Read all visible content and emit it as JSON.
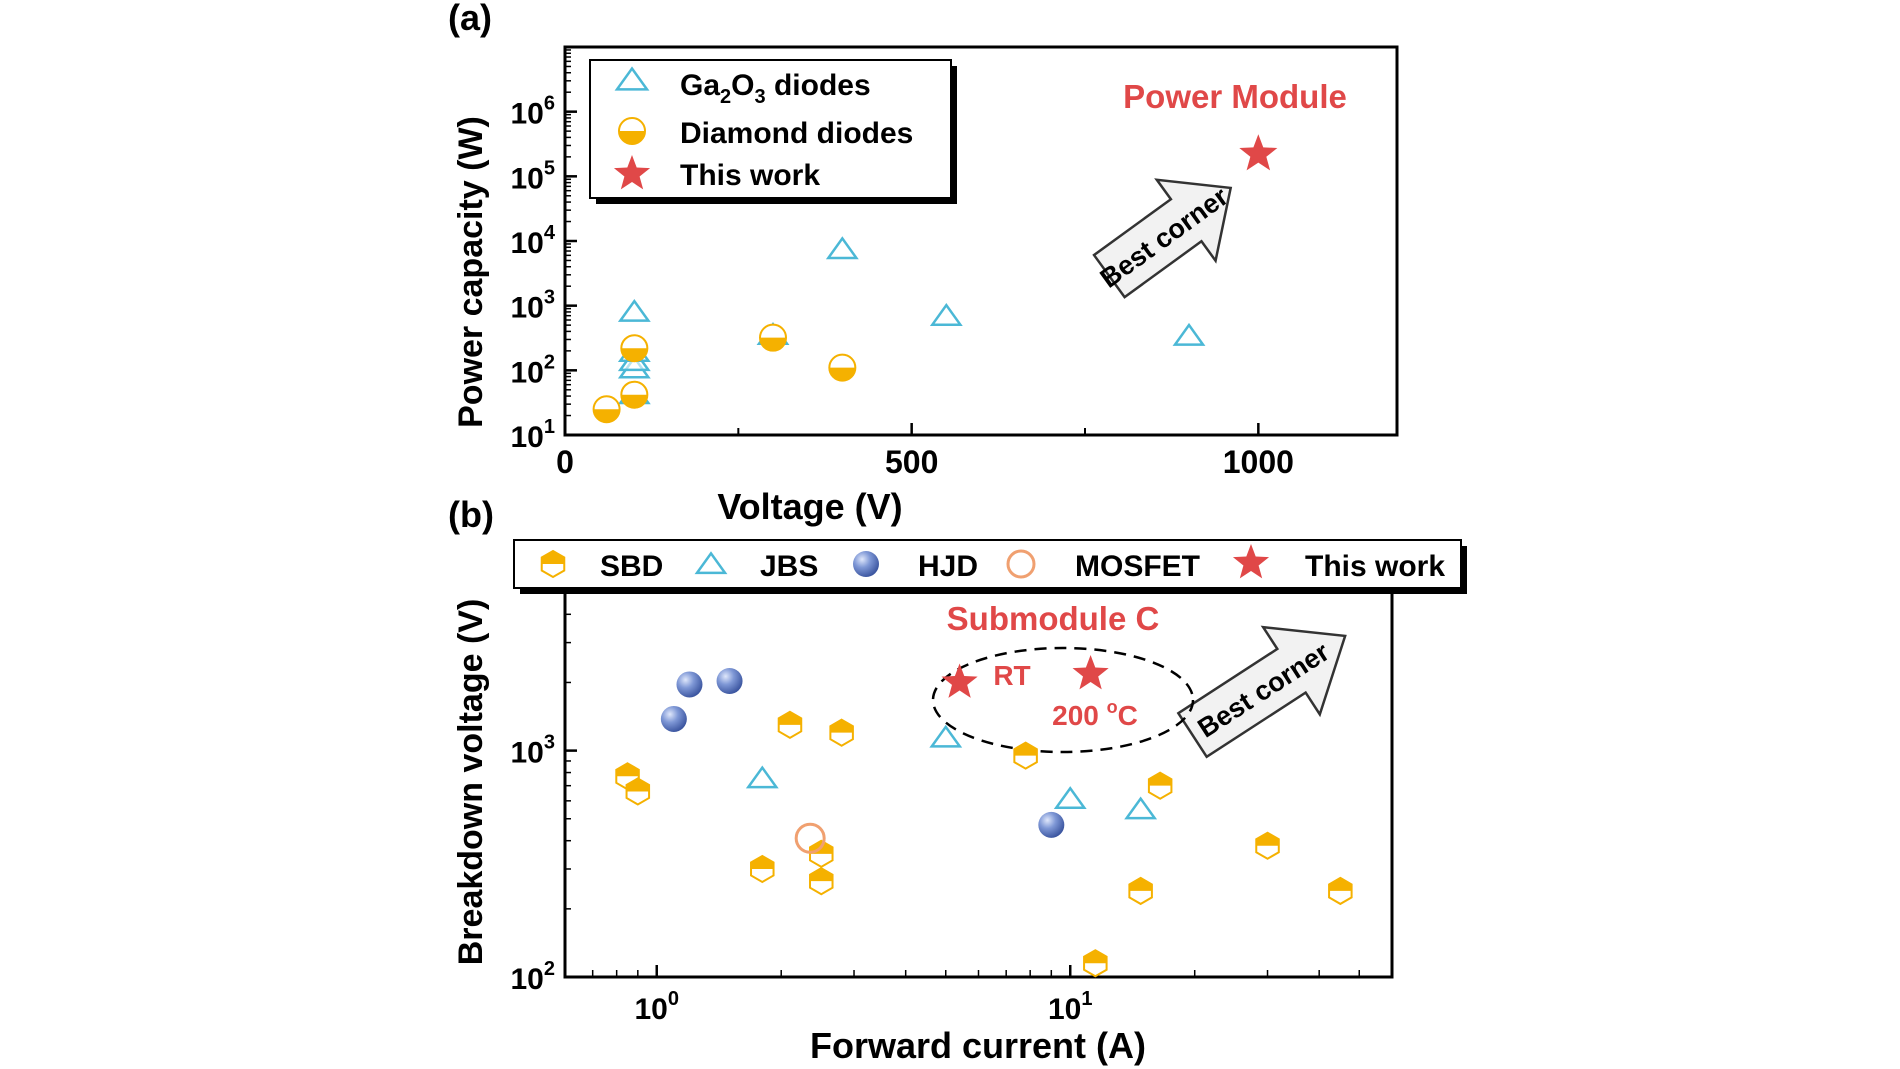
{
  "colors": {
    "ga2o3": "#4bb8d6",
    "diamond": "#f5b100",
    "this_work": "#e04848",
    "hjd": "#6a86c8",
    "mosfet": "#f0a070",
    "arrow_fill": "#f3f3f3",
    "dashed": "#000000"
  },
  "chart_data": [
    {
      "panel": "(a)",
      "type": "scatter",
      "xlabel": "Voltage (V)",
      "ylabel": "Power capacity (W)",
      "xscale": "linear",
      "yscale": "log",
      "xlim": [
        0,
        1200
      ],
      "ylim": [
        10,
        10000000
      ],
      "xticks": [
        0,
        500,
        1000
      ],
      "xtick_labels": [
        "0",
        "500",
        "1000"
      ],
      "yticks": [
        10,
        100,
        1000,
        10000,
        100000,
        1000000
      ],
      "ytick_labels": [
        {
          "base": "10",
          "exp": "1"
        },
        {
          "base": "10",
          "exp": "2"
        },
        {
          "base": "10",
          "exp": "3"
        },
        {
          "base": "10",
          "exp": "4"
        },
        {
          "base": "10",
          "exp": "5"
        },
        {
          "base": "10",
          "exp": "6"
        }
      ],
      "legend": {
        "position": "top-left",
        "entries": [
          {
            "key": "ga2o3",
            "label_parts": [
              "Ga",
              "2",
              "O",
              "3",
              " diodes"
            ]
          },
          {
            "key": "diamond",
            "label": "Diamond diodes"
          },
          {
            "key": "this_work",
            "label": "This work"
          }
        ]
      },
      "series": [
        {
          "name": "Ga2O3 diodes",
          "marker": "triangle",
          "points": [
            [
              100,
              40
            ],
            [
              100,
              100
            ],
            [
              100,
              130
            ],
            [
              100,
              180
            ],
            [
              100,
              750
            ],
            [
              300,
              330
            ],
            [
              400,
              7000
            ],
            [
              550,
              650
            ],
            [
              900,
              320
            ]
          ]
        },
        {
          "name": "Diamond diodes",
          "marker": "half-circle",
          "points": [
            [
              60,
              25
            ],
            [
              100,
              42
            ],
            [
              100,
              220
            ],
            [
              300,
              320
            ],
            [
              400,
              110
            ]
          ]
        },
        {
          "name": "This work",
          "marker": "star",
          "points": [
            [
              1000,
              220000
            ]
          ]
        }
      ],
      "annotations": {
        "label": "Power Module",
        "arrow_text": "Best corner"
      }
    },
    {
      "panel": "(b)",
      "type": "scatter",
      "xlabel": "Forward current (A)",
      "ylabel": "Breakdown voltage (V)",
      "xscale": "log",
      "yscale": "log",
      "xlim": [
        0.6,
        60
      ],
      "ylim": [
        100,
        5500
      ],
      "xticks": [
        1,
        10
      ],
      "xtick_labels": [
        {
          "base": "10",
          "exp": "0"
        },
        {
          "base": "10",
          "exp": "1"
        }
      ],
      "yticks": [
        100,
        1000
      ],
      "ytick_labels": [
        {
          "base": "10",
          "exp": "2"
        },
        {
          "base": "10",
          "exp": "3"
        }
      ],
      "legend": {
        "position": "top",
        "entries": [
          {
            "key": "sbd",
            "label": "SBD"
          },
          {
            "key": "jbs",
            "label": "JBS"
          },
          {
            "key": "hjd",
            "label": "HJD"
          },
          {
            "key": "mosfet",
            "label": "MOSFET"
          },
          {
            "key": "this_work",
            "label": "This work"
          }
        ]
      },
      "series": [
        {
          "name": "SBD",
          "marker": "hexagon",
          "points": [
            [
              0.85,
              770
            ],
            [
              0.9,
              660
            ],
            [
              1.8,
              300
            ],
            [
              2.1,
              1300
            ],
            [
              2.5,
              350
            ],
            [
              2.5,
              265
            ],
            [
              2.8,
              1200
            ],
            [
              7.8,
              950
            ],
            [
              11.5,
              115
            ],
            [
              14.8,
              240
            ],
            [
              16.5,
              700
            ],
            [
              30,
              380
            ],
            [
              45,
              240
            ]
          ]
        },
        {
          "name": "JBS",
          "marker": "triangle",
          "points": [
            [
              1.8,
              740
            ],
            [
              5,
              1120
            ],
            [
              10,
              600
            ],
            [
              14.8,
              540
            ]
          ]
        },
        {
          "name": "HJD",
          "marker": "sphere",
          "points": [
            [
              1.1,
              1380
            ],
            [
              1.2,
              1960
            ],
            [
              1.5,
              2030
            ],
            [
              9,
              470
            ]
          ]
        },
        {
          "name": "MOSFET",
          "marker": "open-circle",
          "points": [
            [
              2.35,
              410
            ]
          ]
        },
        {
          "name": "This work",
          "marker": "star",
          "points": [
            [
              5.4,
              2000
            ],
            [
              11.2,
              2180
            ]
          ]
        }
      ],
      "annotations": {
        "label": "Submodule C",
        "rt_label": "RT",
        "temp_label": "200 °C",
        "temp_value": "200 ",
        "temp_sup": "o",
        "temp_unit": "C",
        "arrow_text": "Best corner"
      }
    }
  ]
}
